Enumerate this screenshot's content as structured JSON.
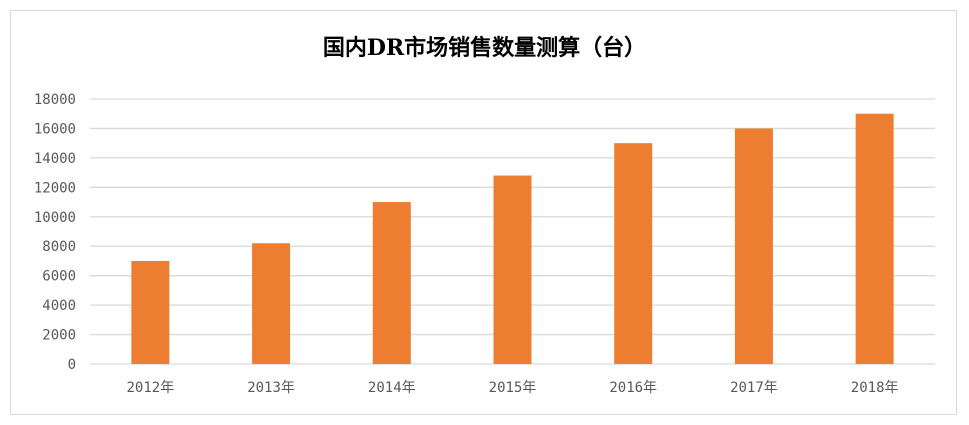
{
  "chart_data": {
    "type": "bar",
    "title": "国内DR市场销售数量测算（台）",
    "categories": [
      "2012年",
      "2013年",
      "2014年",
      "2015年",
      "2016年",
      "2017年",
      "2018年"
    ],
    "values": [
      7000,
      8200,
      11000,
      12800,
      15000,
      16000,
      17000
    ],
    "ylim": [
      0,
      18000
    ],
    "yticks": [
      0,
      2000,
      4000,
      6000,
      8000,
      10000,
      12000,
      14000,
      16000,
      18000
    ],
    "xlabel": "",
    "ylabel": "",
    "grid": true,
    "legend": "none",
    "bar_color": "#ed7d31"
  }
}
